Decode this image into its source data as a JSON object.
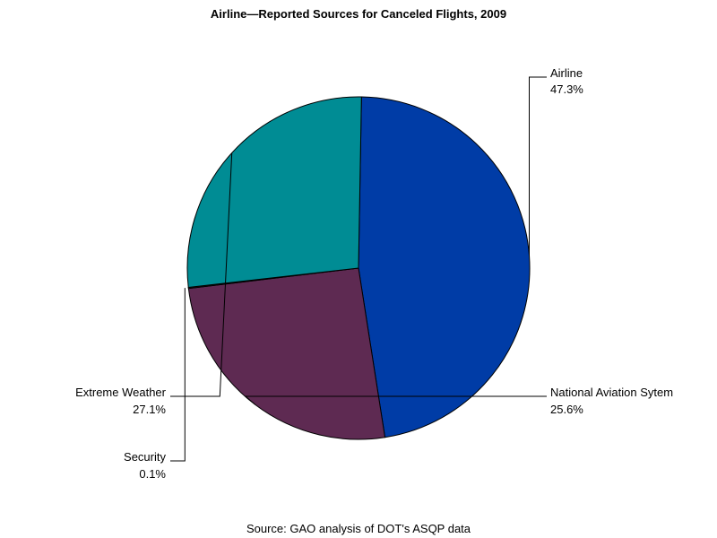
{
  "chart_data": {
    "type": "pie",
    "title": "Airline—Reported Sources for Canceled Flights, 2009",
    "source": "Source: GAO analysis of DOT's ASQP data",
    "slices": [
      {
        "label": "Airline",
        "pct_text": "47.3%",
        "value": 47.3,
        "color": "#003ca6"
      },
      {
        "label": "National Aviation Sytem",
        "pct_text": "25.6%",
        "value": 25.6,
        "color": "#5e2a52"
      },
      {
        "label": "Security",
        "pct_text": "0.1%",
        "value": 0.1,
        "color": "#2a2a2a"
      },
      {
        "label": "Extreme Weather",
        "pct_text": "27.1%",
        "value": 27.1,
        "color": "#008c94"
      }
    ]
  }
}
